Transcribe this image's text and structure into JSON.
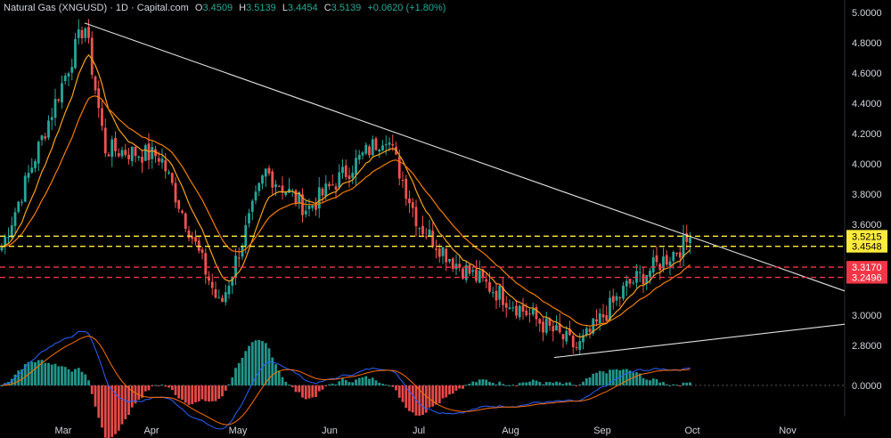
{
  "header": {
    "title": "Natural Gas (XNGUSD) · 1D · Capital.com",
    "open_label": "O",
    "open": "3.4509",
    "high_label": "H",
    "high": "3.5139",
    "low_label": "L",
    "low": "3.4454",
    "close_label": "C",
    "close": "3.5139",
    "change": "+0.0620 (+1.80%)"
  },
  "colors": {
    "up": "#26a69a",
    "down": "#ef5350",
    "ema_fast": "#f7a21b",
    "ema_slow": "#f57c00",
    "trendline": "#e0e0e0",
    "resistance": "#ffeb3b",
    "support": "#f23645",
    "macd": "#2962ff",
    "signal": "#ff6d00"
  },
  "chart_data": {
    "type": "candlestick",
    "y_axis": {
      "range": [
        2.56,
        5.02
      ],
      "ticks": [
        "5.0000",
        "4.8000",
        "4.6000",
        "4.4000",
        "4.2000",
        "4.0000",
        "3.8000",
        "3.6000",
        "3.0000",
        "2.8000"
      ]
    },
    "x_axis": {
      "months": [
        "Mar",
        "Apr",
        "May",
        "Jun",
        "Jul",
        "Aug",
        "Sep",
        "Oct",
        "Nov"
      ]
    },
    "key_points": [
      {
        "x": "Feb",
        "y": 3.45
      },
      {
        "x": "Mar",
        "y": 4.93,
        "note": "high"
      },
      {
        "x": "Mar",
        "y": 4.1
      },
      {
        "x": "Apr",
        "y": 4.05
      },
      {
        "x": "May",
        "y": 3.05,
        "note": "low"
      },
      {
        "x": "May",
        "y": 3.95
      },
      {
        "x": "Jun",
        "y": 3.7
      },
      {
        "x": "Jun",
        "y": 4.2,
        "note": "high"
      },
      {
        "x": "Jul",
        "y": 3.6
      },
      {
        "x": "Jul",
        "y": 3.35
      },
      {
        "x": "Aug",
        "y": 2.78,
        "note": "low"
      },
      {
        "x": "Sep",
        "y": 3.2
      },
      {
        "x": "Sep",
        "y": 3.32
      },
      {
        "x": "Oct",
        "y": 3.51,
        "note": "last"
      }
    ],
    "horizontal_levels": [
      {
        "label": "3.5215",
        "value": 3.5215,
        "kind": "resistance"
      },
      {
        "label": "3.4548",
        "value": 3.4548,
        "kind": "resistance"
      },
      {
        "label": "3.3170",
        "value": 3.317,
        "kind": "support"
      },
      {
        "label": "3.2496",
        "value": 3.2496,
        "kind": "support"
      }
    ],
    "trendlines": [
      {
        "from": {
          "x": "Mar",
          "y": 4.93
        },
        "to": {
          "x": "Nov",
          "y": 3.16
        }
      },
      {
        "from": {
          "x": "Aug",
          "y": 2.72
        },
        "to": {
          "x": "Nov",
          "y": 2.94
        }
      }
    ],
    "macd": {
      "zero_label": "0.0000",
      "range": [
        -0.24,
        0.2
      ]
    }
  }
}
